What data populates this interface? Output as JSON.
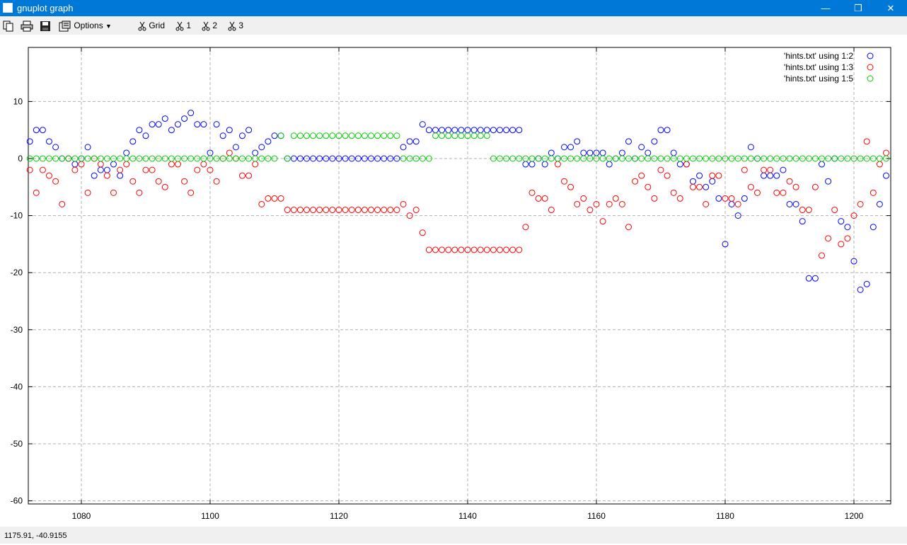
{
  "window": {
    "title": "gnuplot graph",
    "minimize": "—",
    "maximize": "❐",
    "close": "✕"
  },
  "toolbar": {
    "options_label": "Options",
    "grid_label": "Grid",
    "plot1_label": "1",
    "plot2_label": "2",
    "plot3_label": "3"
  },
  "statusbar": {
    "coords": "1175.91, -40.9155"
  },
  "colors": {
    "titlebar": "#0078d7",
    "series1": "#0000ff",
    "series2": "#ff0000",
    "series3": "#00cc00"
  },
  "chart_data": {
    "type": "scatter",
    "title": "",
    "xlabel": "",
    "ylabel": "",
    "xlim": [
      1072,
      1206
    ],
    "ylim": [
      -61,
      19
    ],
    "xticks": [
      1080,
      1100,
      1120,
      1140,
      1160,
      1180,
      1200
    ],
    "yticks": [
      10,
      0,
      -10,
      -20,
      -30,
      -40,
      -50,
      -60
    ],
    "grid": true,
    "legend_position": "top-right",
    "marker": "open-circle",
    "series": [
      {
        "name": "'hints.txt' using 1:2",
        "color": "#0000ff",
        "x": [
          1072,
          1073,
          1074,
          1075,
          1076,
          1077,
          1078,
          1079,
          1080,
          1081,
          1082,
          1083,
          1084,
          1085,
          1086,
          1087,
          1088,
          1089,
          1090,
          1091,
          1092,
          1093,
          1094,
          1095,
          1096,
          1097,
          1098,
          1099,
          1100,
          1101,
          1102,
          1103,
          1104,
          1105,
          1106,
          1107,
          1108,
          1109,
          1110,
          1111,
          1112,
          1113,
          1114,
          1115,
          1116,
          1117,
          1118,
          1119,
          1120,
          1121,
          1122,
          1123,
          1124,
          1125,
          1126,
          1127,
          1128,
          1129,
          1130,
          1131,
          1132,
          1133,
          1134,
          1135,
          1136,
          1137,
          1138,
          1139,
          1140,
          1141,
          1142,
          1143,
          1144,
          1145,
          1146,
          1147,
          1148,
          1149,
          1150,
          1151,
          1152,
          1153,
          1154,
          1155,
          1156,
          1157,
          1158,
          1159,
          1160,
          1161,
          1162,
          1163,
          1164,
          1165,
          1166,
          1167,
          1168,
          1169,
          1170,
          1171,
          1172,
          1173,
          1174,
          1175,
          1176,
          1177,
          1178,
          1179,
          1180,
          1181,
          1182,
          1183,
          1184,
          1185,
          1186,
          1187,
          1188,
          1189,
          1190,
          1191,
          1192,
          1193,
          1194,
          1195,
          1196,
          1197,
          1198,
          1199,
          1200,
          1201,
          1202,
          1203,
          1204,
          1205
        ],
        "y": [
          3,
          5,
          5,
          3,
          2,
          0,
          0,
          -1,
          0,
          2,
          -3,
          -2,
          -2,
          -1,
          -3,
          1,
          3,
          5,
          4,
          6,
          6,
          7,
          5,
          6,
          7,
          8,
          6,
          6,
          1,
          6,
          4,
          5,
          2,
          4,
          5,
          1,
          2,
          3,
          4,
          4,
          0,
          0,
          0,
          0,
          0,
          0,
          0,
          0,
          0,
          0,
          0,
          0,
          0,
          0,
          0,
          0,
          0,
          0,
          2,
          3,
          3,
          6,
          5,
          5,
          5,
          5,
          5,
          5,
          5,
          5,
          5,
          5,
          5,
          5,
          5,
          5,
          5,
          -1,
          -1,
          0,
          -1,
          1,
          0,
          2,
          2,
          3,
          1,
          1,
          1,
          1,
          -1,
          0,
          1,
          3,
          0,
          2,
          1,
          3,
          5,
          5,
          1,
          -1,
          -1,
          -4,
          -3,
          -5,
          -4,
          -7,
          -15,
          -8,
          -10,
          -7,
          2,
          0,
          -3,
          -3,
          -3,
          -2,
          -8,
          -8,
          -11,
          -21,
          -21,
          -1,
          -4,
          0,
          -11,
          -12,
          -18,
          -23,
          -22,
          -12,
          -8,
          -3
        ]
      },
      {
        "name": "'hints.txt' using 1:3",
        "color": "#ff0000",
        "x": [
          1072,
          1073,
          1074,
          1075,
          1076,
          1077,
          1078,
          1079,
          1080,
          1081,
          1082,
          1083,
          1084,
          1085,
          1086,
          1087,
          1088,
          1089,
          1090,
          1091,
          1092,
          1093,
          1094,
          1095,
          1096,
          1097,
          1098,
          1099,
          1100,
          1101,
          1102,
          1103,
          1104,
          1105,
          1106,
          1107,
          1108,
          1109,
          1110,
          1111,
          1112,
          1113,
          1114,
          1115,
          1116,
          1117,
          1118,
          1119,
          1120,
          1121,
          1122,
          1123,
          1124,
          1125,
          1126,
          1127,
          1128,
          1129,
          1130,
          1131,
          1132,
          1133,
          1134,
          1135,
          1136,
          1137,
          1138,
          1139,
          1140,
          1141,
          1142,
          1143,
          1144,
          1145,
          1146,
          1147,
          1148,
          1149,
          1150,
          1151,
          1152,
          1153,
          1154,
          1155,
          1156,
          1157,
          1158,
          1159,
          1160,
          1161,
          1162,
          1163,
          1164,
          1165,
          1166,
          1167,
          1168,
          1169,
          1170,
          1171,
          1172,
          1173,
          1174,
          1175,
          1176,
          1177,
          1178,
          1179,
          1180,
          1181,
          1182,
          1183,
          1184,
          1185,
          1186,
          1187,
          1188,
          1189,
          1190,
          1191,
          1192,
          1193,
          1194,
          1195,
          1196,
          1197,
          1198,
          1199,
          1200,
          1201,
          1202,
          1203,
          1204,
          1205
        ],
        "y": [
          -2,
          -6,
          -2,
          -3,
          -4,
          -8,
          0,
          -2,
          -1,
          -6,
          0,
          -1,
          -3,
          -6,
          -2,
          -1,
          -4,
          -6,
          -2,
          -2,
          -4,
          -5,
          -1,
          -1,
          -4,
          -6,
          -2,
          -1,
          -2,
          -4,
          0,
          1,
          0,
          -3,
          -3,
          -1,
          -8,
          -7,
          -7,
          -7,
          -9,
          -9,
          -9,
          -9,
          -9,
          -9,
          -9,
          -9,
          -9,
          -9,
          -9,
          -9,
          -9,
          -9,
          -9,
          -9,
          -9,
          -9,
          -8,
          -10,
          -9,
          -13,
          -16,
          -16,
          -16,
          -16,
          -16,
          -16,
          -16,
          -16,
          -16,
          -16,
          -16,
          -16,
          -16,
          -16,
          -16,
          -12,
          -6,
          -7,
          -7,
          -9,
          -1,
          -4,
          -5,
          -8,
          -7,
          -9,
          -8,
          -11,
          -8,
          -7,
          -8,
          -12,
          -4,
          -3,
          -5,
          -7,
          -2,
          -3,
          -6,
          -7,
          -1,
          -5,
          -5,
          -8,
          -3,
          -3,
          -7,
          -7,
          -8,
          -2,
          -5,
          -6,
          -2,
          -2,
          -6,
          -6,
          -4,
          -5,
          -9,
          -9,
          -5,
          -17,
          -14,
          -9,
          -15,
          -14,
          -10,
          -8,
          3,
          -6,
          -1,
          1
        ]
      },
      {
        "name": "'hints.txt' using 1:5",
        "color": "#00cc00",
        "x": [
          1072,
          1073,
          1074,
          1075,
          1076,
          1077,
          1078,
          1079,
          1080,
          1081,
          1082,
          1083,
          1084,
          1085,
          1086,
          1087,
          1088,
          1089,
          1090,
          1091,
          1092,
          1093,
          1094,
          1095,
          1096,
          1097,
          1098,
          1099,
          1100,
          1101,
          1102,
          1103,
          1104,
          1105,
          1106,
          1107,
          1108,
          1109,
          1110,
          1111,
          1112,
          1113,
          1114,
          1115,
          1116,
          1117,
          1118,
          1119,
          1120,
          1121,
          1122,
          1123,
          1124,
          1125,
          1126,
          1127,
          1128,
          1129,
          1130,
          1131,
          1132,
          1133,
          1134,
          1135,
          1136,
          1137,
          1138,
          1139,
          1140,
          1141,
          1142,
          1143,
          1144,
          1145,
          1146,
          1147,
          1148,
          1149,
          1150,
          1151,
          1152,
          1153,
          1154,
          1155,
          1156,
          1157,
          1158,
          1159,
          1160,
          1161,
          1162,
          1163,
          1164,
          1165,
          1166,
          1167,
          1168,
          1169,
          1170,
          1171,
          1172,
          1173,
          1174,
          1175,
          1176,
          1177,
          1178,
          1179,
          1180,
          1181,
          1182,
          1183,
          1184,
          1185,
          1186,
          1187,
          1188,
          1189,
          1190,
          1191,
          1192,
          1193,
          1194,
          1195,
          1196,
          1197,
          1198,
          1199,
          1200,
          1201,
          1202,
          1203,
          1204,
          1205
        ],
        "y": [
          0,
          0,
          0,
          0,
          0,
          0,
          0,
          0,
          0,
          0,
          0,
          0,
          0,
          0,
          0,
          0,
          0,
          0,
          0,
          0,
          0,
          0,
          0,
          0,
          0,
          0,
          0,
          0,
          0,
          0,
          0,
          0,
          0,
          0,
          0,
          0,
          0,
          0,
          0,
          4,
          0,
          4,
          4,
          4,
          4,
          4,
          4,
          4,
          4,
          4,
          4,
          4,
          4,
          4,
          4,
          4,
          4,
          4,
          0,
          0,
          0,
          0,
          0,
          4,
          4,
          4,
          4,
          4,
          4,
          4,
          4,
          4,
          0,
          0,
          0,
          0,
          0,
          0,
          0,
          0,
          0,
          0,
          0,
          0,
          0,
          0,
          0,
          0,
          0,
          0,
          0,
          0,
          0,
          0,
          0,
          0,
          0,
          0,
          0,
          0,
          0,
          0,
          0,
          0,
          0,
          0,
          0,
          0,
          0,
          0,
          0,
          0,
          0,
          0,
          0,
          0,
          0,
          0,
          0,
          0,
          0,
          0,
          0,
          0,
          0,
          0,
          0,
          0,
          0,
          0,
          0,
          0,
          0,
          0
        ]
      }
    ]
  }
}
